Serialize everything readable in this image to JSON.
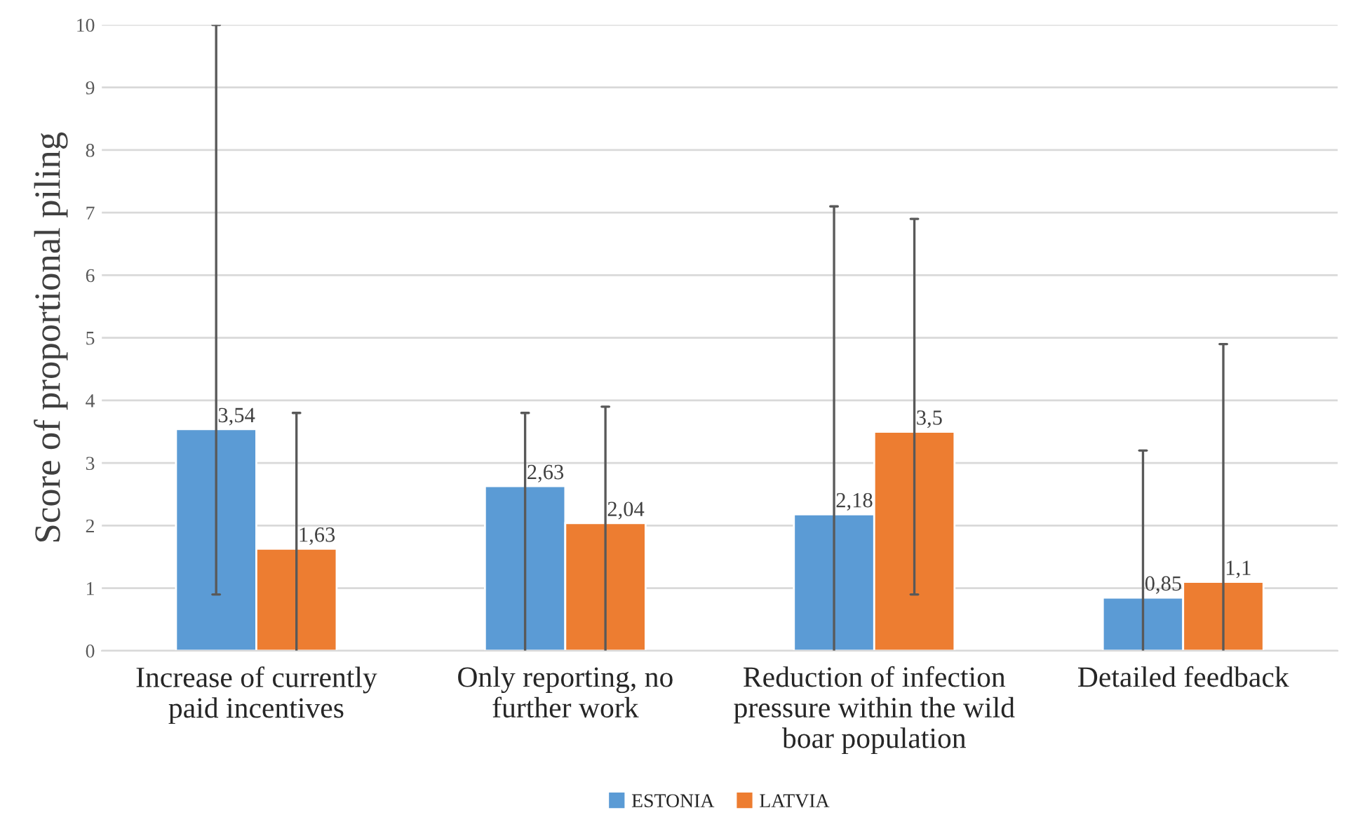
{
  "chart_data": {
    "type": "bar",
    "ylabel": "Score of proportional piling",
    "categories": [
      "Increase of currently paid incentives",
      "Only reporting, no further work",
      "Reduction of infection pressure within the wild boar population",
      "Detailed feedback"
    ],
    "series": [
      {
        "name": "ESTONIA",
        "color": "#5b9bd5",
        "values": [
          3.54,
          2.63,
          2.18,
          0.85
        ],
        "value_labels": [
          "3,54",
          "2,63",
          "2,18",
          "0,85"
        ],
        "errors": [
          [
            0.9,
            10
          ],
          [
            0,
            3.8
          ],
          [
            0,
            7.1
          ],
          [
            0,
            3.2
          ]
        ]
      },
      {
        "name": "LATVIA",
        "color": "#ed7d31",
        "values": [
          1.63,
          2.04,
          3.5,
          1.1
        ],
        "value_labels": [
          "1,63",
          "2,04",
          "3,5",
          "1,1"
        ],
        "errors": [
          [
            0,
            3.8
          ],
          [
            0,
            3.9
          ],
          [
            0.9,
            6.9
          ],
          [
            0,
            4.9
          ]
        ]
      }
    ],
    "ylim": [
      0,
      10
    ],
    "yticks": [
      0,
      1,
      2,
      3,
      4,
      5,
      6,
      7,
      8,
      9,
      10
    ],
    "grid": "y",
    "legend": "bottom"
  }
}
